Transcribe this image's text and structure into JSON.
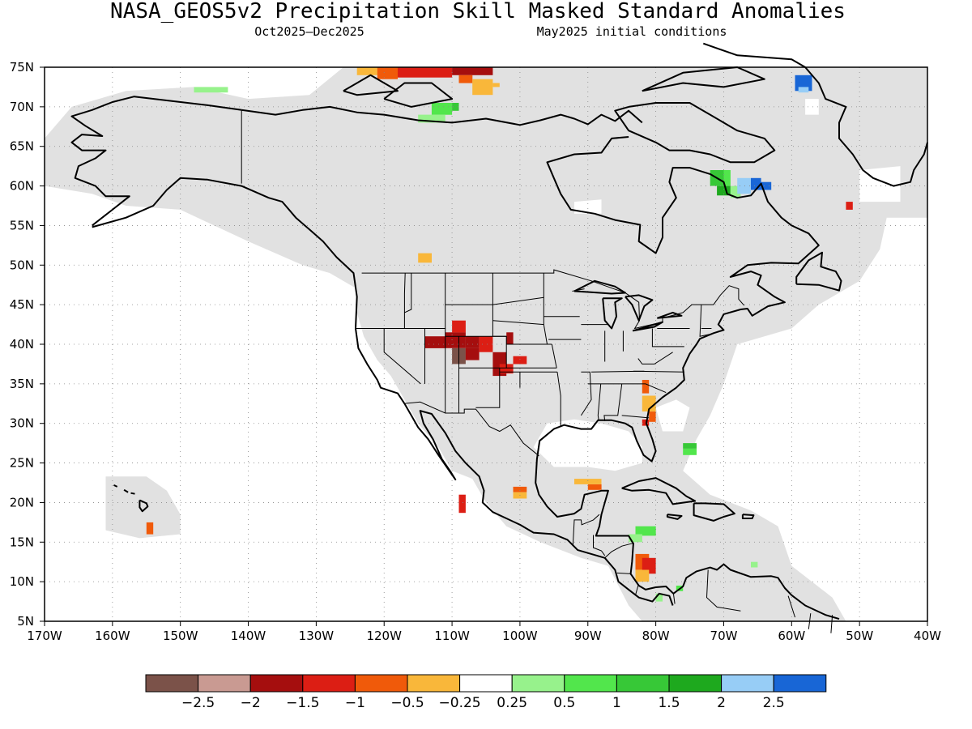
{
  "header": {
    "title": "NASA_GEOS5v2 Precipitation Skill Masked Standard Anomalies",
    "period": "Oct2025–Dec2025",
    "init": "May2025 initial conditions"
  },
  "map": {
    "lat_labels": [
      "75N",
      "70N",
      "65N",
      "60N",
      "55N",
      "50N",
      "45N",
      "40N",
      "35N",
      "30N",
      "25N",
      "20N",
      "15N",
      "10N",
      "5N"
    ],
    "lon_labels": [
      "170W",
      "160W",
      "150W",
      "140W",
      "130W",
      "120W",
      "110W",
      "100W",
      "90W",
      "80W",
      "70W",
      "60W",
      "50W",
      "40W"
    ],
    "lat_range": [
      5,
      75
    ],
    "lon_range": [
      -170,
      -40
    ],
    "mask_color": "#e1e1e1",
    "coast_color": "#000000"
  },
  "colorbar": {
    "colors": [
      "#7b5249",
      "#c99a92",
      "#a50e0e",
      "#dc1e14",
      "#f05a0a",
      "#f9b73a",
      "#ffffff",
      "#97f28c",
      "#52e64c",
      "#37c837",
      "#1ea91e",
      "#97cdf6",
      "#1866d6"
    ],
    "labels": [
      "−2.5",
      "−2",
      "−1.5",
      "−1",
      "−0.5",
      "−0.25",
      "0.25",
      "0.5",
      "1",
      "1.5",
      "2",
      "2.5"
    ]
  }
}
